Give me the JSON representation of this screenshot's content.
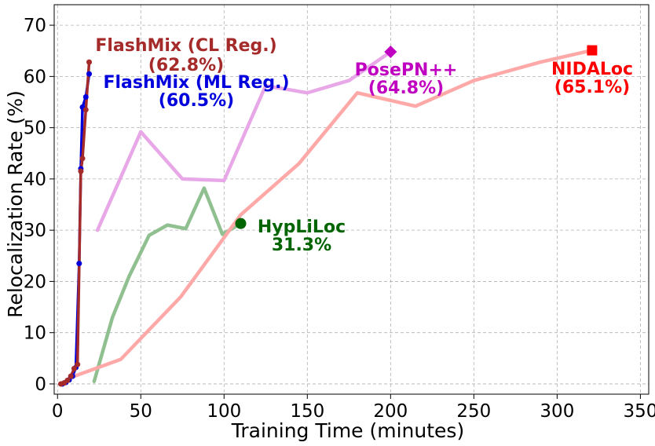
{
  "chart_data": {
    "type": "line",
    "xlabel": "Training Time (minutes)",
    "ylabel": "Relocalization Rate (%)",
    "xlim": [
      -2,
      355
    ],
    "ylim": [
      -2,
      74
    ],
    "xticks": [
      0,
      50,
      100,
      150,
      200,
      250,
      300,
      350
    ],
    "yticks": [
      0,
      10,
      20,
      30,
      40,
      50,
      60,
      70
    ],
    "grid": true,
    "series": [
      {
        "key": "hyp",
        "color": "#90c090",
        "x": [
          22,
          33,
          43,
          55,
          66,
          77,
          88,
          99,
          110
        ],
        "y": [
          0.5,
          13,
          21,
          29,
          31,
          30.3,
          38.2,
          29.2,
          31.3
        ],
        "marker_color": "#006400",
        "end_marker": "circle"
      },
      {
        "key": "nida",
        "color": "#ffa8a8",
        "x": [
          10,
          38,
          74,
          110,
          145,
          180,
          215,
          250,
          290,
          321
        ],
        "y": [
          1.5,
          4.8,
          17,
          33,
          43,
          56.8,
          54.2,
          59.2,
          62.8,
          65.1
        ],
        "marker_color": "#ff0000",
        "end_marker": "square"
      },
      {
        "key": "pose",
        "color": "#e8a8e8",
        "x": [
          24,
          50,
          75,
          100,
          125,
          150,
          175,
          200
        ],
        "y": [
          30,
          49.2,
          40,
          39.7,
          58.2,
          56.8,
          59.2,
          64.8
        ],
        "marker_color": "#c000c0",
        "end_marker": "diamond"
      },
      {
        "key": "fml",
        "color": "#0000dd",
        "x": [
          3,
          5,
          7,
          9,
          11,
          13,
          14,
          15,
          17,
          19
        ],
        "y": [
          0,
          0.3,
          0.8,
          1.5,
          3.2,
          23.5,
          42,
          54,
          56,
          60.5
        ],
        "marker_color": "#0000dd",
        "end_marker": "dot"
      },
      {
        "key": "fcl",
        "color": "#a52a2a",
        "x": [
          2,
          4,
          6,
          8,
          10,
          12,
          14,
          15,
          17,
          19
        ],
        "y": [
          0,
          0.2,
          0.7,
          1.5,
          3,
          3.8,
          41.5,
          44,
          53.5,
          62.8
        ],
        "marker_color": "#a52a2a",
        "end_marker": "dot"
      }
    ],
    "annotations": [
      {
        "key": "fcl",
        "lines": [
          "FlashMix (CL Reg.)",
          "(62.8%)"
        ],
        "color": "#a52a2a"
      },
      {
        "key": "fml",
        "lines": [
          "FlashMix (ML Reg.)",
          "(60.5%)"
        ],
        "color": "#0000dd"
      },
      {
        "key": "pose",
        "lines": [
          "PosePN++",
          "(64.8%)"
        ],
        "color": "#c000c0"
      },
      {
        "key": "nida",
        "lines": [
          "NIDALoc",
          "(65.1%)"
        ],
        "color": "#ff0000"
      },
      {
        "key": "hyp",
        "lines": [
          "HypLiLoc",
          "31.3%"
        ],
        "color": "#006400"
      }
    ]
  }
}
